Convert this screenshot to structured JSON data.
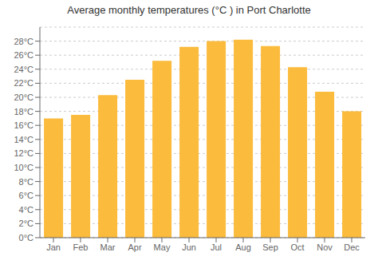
{
  "chart_data": {
    "type": "bar",
    "title": "Average monthly temperatures (°C ) in Port Charlotte",
    "categories": [
      "Jan",
      "Feb",
      "Mar",
      "Apr",
      "May",
      "Jun",
      "Jul",
      "Aug",
      "Sep",
      "Oct",
      "Nov",
      "Dec"
    ],
    "values": [
      17.0,
      17.5,
      20.3,
      22.5,
      25.2,
      27.2,
      28.0,
      28.2,
      27.3,
      24.3,
      20.8,
      18.0
    ],
    "color": "#FBBB3C",
    "ylim": [
      0,
      30
    ],
    "yticks": [
      {
        "value": 0,
        "label": "0°C"
      },
      {
        "value": 2,
        "label": "2°C"
      },
      {
        "value": 4,
        "label": "4°C"
      },
      {
        "value": 6,
        "label": "6°C"
      },
      {
        "value": 8,
        "label": "8°C"
      },
      {
        "value": 10,
        "label": "10°C"
      },
      {
        "value": 12,
        "label": "12°C"
      },
      {
        "value": 14,
        "label": "14°C"
      },
      {
        "value": 16,
        "label": "16°C"
      },
      {
        "value": 18,
        "label": "18°C"
      },
      {
        "value": 20,
        "label": "20°C"
      },
      {
        "value": 22,
        "label": "22°C"
      },
      {
        "value": 24,
        "label": "24°C"
      },
      {
        "value": 26,
        "label": "26°C"
      },
      {
        "value": 28,
        "label": "28°C"
      }
    ],
    "grid": true
  }
}
